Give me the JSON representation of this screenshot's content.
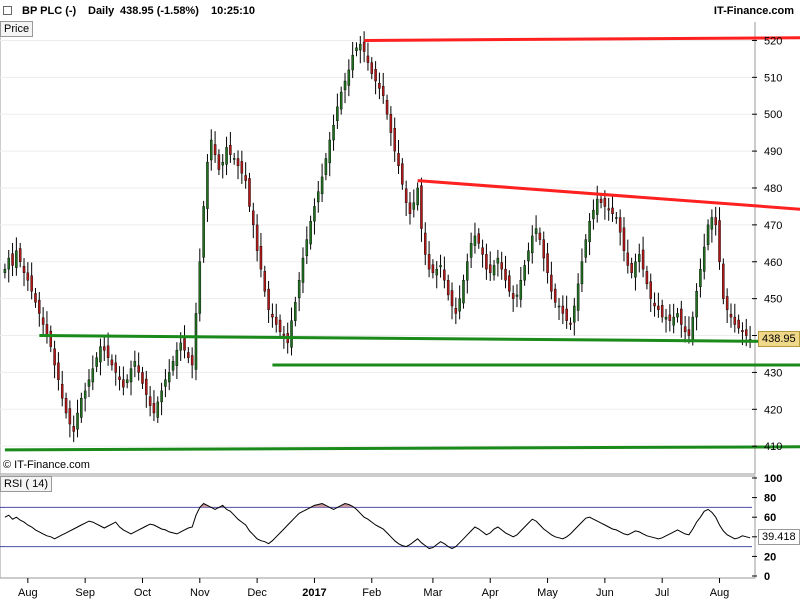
{
  "header": {
    "symbol": "BP PLC (-)",
    "interval": "Daily",
    "last_quote": "438.95 (-1.58%)",
    "time": "10:25:10",
    "brand": "IT-Finance.com"
  },
  "price_panel": {
    "label": "Price",
    "copyright": "© IT-Finance.com",
    "last_value_label": "438.95"
  },
  "rsi_panel": {
    "label": "RSI ( 14)",
    "last_value_label": "39.418"
  },
  "colors": {
    "resistance": "#ff2020",
    "support": "#1a8a1a",
    "candle_up": "#1f6f1f",
    "candle_down": "#b01818",
    "wick": "#000000",
    "rsi_line": "#000000",
    "rsi_band": "#4444aa",
    "rsi_overbought_fill": "#c89aa0",
    "rsi_oversold_fill": "#a6b4d8",
    "last_tag_bg": "#f0d88a"
  },
  "chart_data": [
    {
      "type": "candlestick",
      "title": "BP PLC (-) Daily",
      "ylabel": "Price",
      "ylim": [
        403,
        525
      ],
      "yticks": [
        410,
        420,
        430,
        440,
        450,
        460,
        470,
        480,
        490,
        500,
        510,
        520
      ],
      "x_labels": [
        "Aug",
        "Sep",
        "Oct",
        "Nov",
        "Dec",
        "2017",
        "Feb",
        "Mar",
        "Apr",
        "May",
        "Jun",
        "Jul",
        "Aug"
      ],
      "closes": [
        458,
        461,
        459,
        463,
        460,
        457,
        455,
        452,
        449,
        446,
        443,
        440,
        437,
        432,
        428,
        423,
        419,
        416,
        414,
        419,
        423,
        425,
        428,
        431,
        434,
        437,
        436,
        434,
        432,
        430,
        428,
        426,
        428,
        431,
        433,
        430,
        427,
        424,
        421,
        419,
        422,
        425,
        428,
        430,
        433,
        436,
        438,
        436,
        434,
        432,
        446,
        460,
        475,
        487,
        493,
        489,
        485,
        487,
        491,
        489,
        488,
        486,
        484,
        482,
        475,
        470,
        463,
        458,
        452,
        447,
        445,
        443,
        441,
        440,
        438,
        444,
        449,
        455,
        461,
        466,
        471,
        475,
        479,
        483,
        488,
        493,
        497,
        502,
        506,
        509,
        512,
        516,
        518,
        519,
        517,
        514,
        511,
        509,
        507,
        505,
        500,
        495,
        490,
        486,
        481,
        476,
        473,
        476,
        480,
        469,
        462,
        458,
        457,
        458,
        459,
        455,
        451,
        448,
        446,
        450,
        455,
        460,
        465,
        467,
        465,
        462,
        458,
        457,
        459,
        461,
        458,
        455,
        452,
        450,
        451,
        455,
        459,
        463,
        467,
        469,
        466,
        461,
        457,
        452,
        449,
        448,
        446,
        444,
        443,
        448,
        454,
        460,
        466,
        471,
        474,
        477,
        476,
        475,
        474,
        473,
        472,
        468,
        463,
        459,
        457,
        460,
        462,
        458,
        454,
        450,
        448,
        447,
        445,
        445,
        444,
        445,
        446,
        443,
        441,
        440,
        445,
        452,
        458,
        464,
        470,
        472,
        470,
        460,
        450,
        447,
        445,
        443,
        442,
        441,
        440,
        439
      ],
      "shapes": [
        {
          "name": "resistance-long",
          "color": "red",
          "points": [
            [
              94,
              520
            ],
            [
              250,
              521
            ]
          ]
        },
        {
          "name": "resistance-short",
          "color": "red",
          "points": [
            [
              108,
              482
            ],
            [
              250,
              471
            ]
          ]
        },
        {
          "name": "support-upper",
          "color": "green",
          "points": [
            [
              9,
              440
            ],
            [
              250,
              438
            ]
          ]
        },
        {
          "name": "support-mid",
          "color": "green",
          "points": [
            [
              70,
              432
            ],
            [
              250,
              432
            ]
          ]
        },
        {
          "name": "support-low",
          "color": "green",
          "points": [
            [
              0,
              409
            ],
            [
              250,
              410
            ]
          ]
        }
      ],
      "last_value": 438.95
    },
    {
      "type": "line",
      "title": "RSI ( 14)",
      "ylim": [
        0,
        100
      ],
      "yticks": [
        0,
        20,
        40,
        60,
        80,
        100
      ],
      "bands": [
        30,
        70
      ],
      "values": [
        60,
        62,
        58,
        60,
        57,
        55,
        52,
        50,
        47,
        45,
        43,
        41,
        40,
        38,
        40,
        42,
        44,
        46,
        48,
        50,
        52,
        54,
        56,
        55,
        53,
        51,
        49,
        51,
        53,
        55,
        50,
        47,
        45,
        43,
        45,
        47,
        49,
        51,
        53,
        52,
        50,
        48,
        47,
        45,
        44,
        43,
        45,
        47,
        49,
        50,
        62,
        70,
        74,
        72,
        70,
        68,
        70,
        72,
        68,
        66,
        62,
        58,
        55,
        52,
        46,
        42,
        38,
        36,
        35,
        33,
        36,
        40,
        44,
        48,
        52,
        56,
        60,
        64,
        66,
        68,
        70,
        72,
        73,
        74,
        72,
        70,
        68,
        70,
        72,
        74,
        73,
        71,
        68,
        64,
        60,
        58,
        55,
        52,
        50,
        48,
        44,
        40,
        36,
        33,
        31,
        30,
        32,
        35,
        38,
        34,
        31,
        28,
        29,
        32,
        35,
        33,
        30,
        28,
        30,
        34,
        38,
        42,
        46,
        50,
        48,
        45,
        42,
        44,
        48,
        50,
        47,
        44,
        42,
        40,
        42,
        46,
        50,
        54,
        58,
        56,
        52,
        48,
        45,
        42,
        40,
        39,
        38,
        40,
        43,
        47,
        51,
        55,
        59,
        60,
        58,
        56,
        54,
        52,
        50,
        48,
        47,
        45,
        43,
        42,
        44,
        46,
        45,
        43,
        41,
        40,
        39,
        38,
        39,
        41,
        43,
        45,
        47,
        45,
        43,
        42,
        48,
        55,
        60,
        66,
        68,
        65,
        60,
        52,
        46,
        42,
        40,
        38,
        39,
        41,
        40,
        39
      ],
      "last_value": 39.418
    }
  ]
}
